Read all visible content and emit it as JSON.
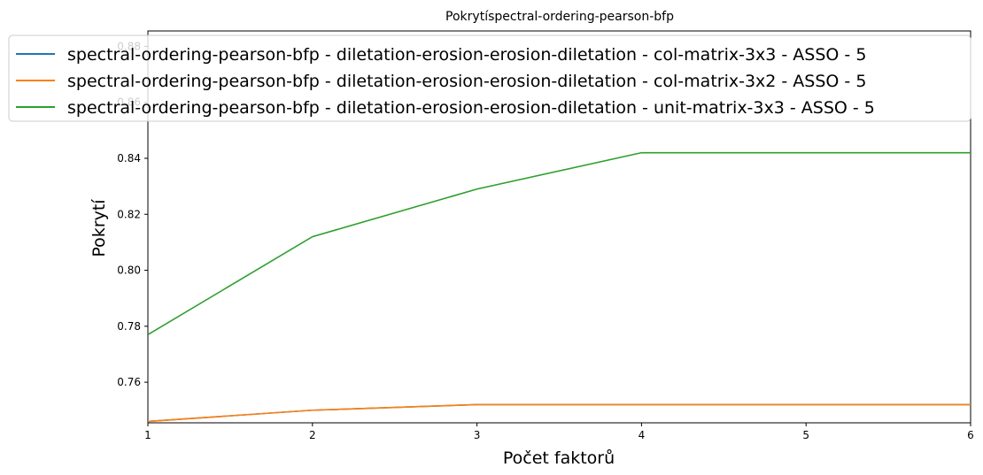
{
  "chart_data": {
    "type": "line",
    "title": "Pokrytíspectral-ordering-pearson-bfp",
    "xlabel": "Počet faktorů",
    "ylabel": "Pokrytí",
    "xlim": [
      1,
      6
    ],
    "ylim": [
      0.7455,
      0.8855
    ],
    "x_ticks": [
      1,
      2,
      3,
      4,
      5,
      6
    ],
    "y_ticks": [
      0.76,
      0.78,
      0.8,
      0.82,
      0.84,
      0.86,
      0.88
    ],
    "y_tick_labels": [
      "0.76",
      "0.78",
      "0.80",
      "0.82",
      "0.84",
      "0.86",
      "0.88"
    ],
    "x": [
      1,
      2,
      3,
      4,
      5,
      6
    ],
    "grid": false,
    "legend_position": "top",
    "series": [
      {
        "name": "spectral-ordering-pearson-bfp - diletation-erosion-erosion-diletation - col-matrix-3x3 - ASSO - 5",
        "color": "#1f77b4",
        "values": [
          0.746,
          0.75,
          0.752,
          0.752,
          0.752,
          0.752
        ]
      },
      {
        "name": "spectral-ordering-pearson-bfp - diletation-erosion-erosion-diletation - col-matrix-3x2 - ASSO - 5",
        "color": "#ff7f0e",
        "values": [
          0.746,
          0.75,
          0.752,
          0.752,
          0.752,
          0.752
        ]
      },
      {
        "name": "spectral-ordering-pearson-bfp - diletation-erosion-erosion-diletation - unit-matrix-3x3 - ASSO - 5",
        "color": "#2ca02c",
        "values": [
          0.777,
          0.812,
          0.829,
          0.842,
          0.842,
          0.842
        ]
      }
    ]
  }
}
